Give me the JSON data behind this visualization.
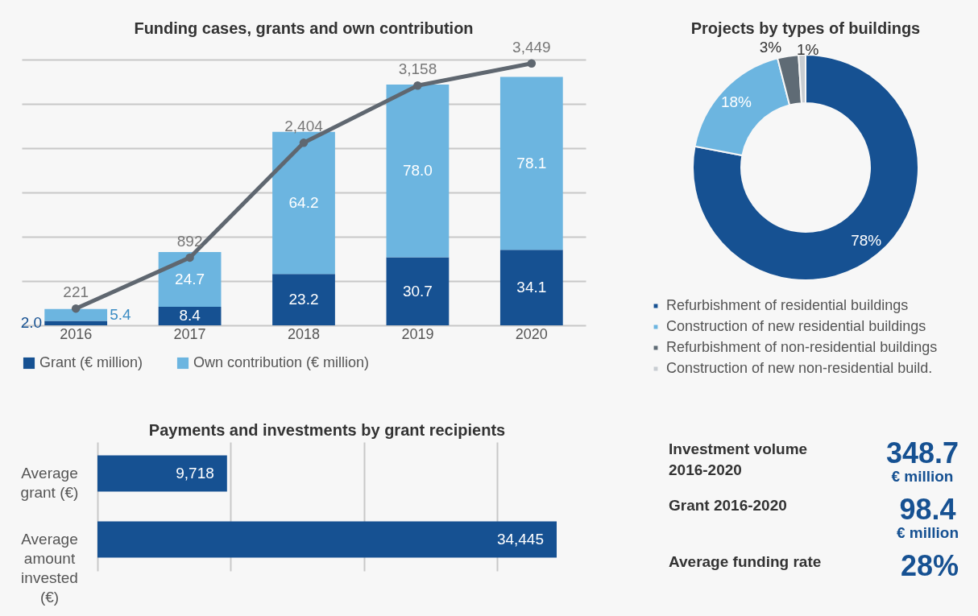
{
  "chart_data": [
    {
      "type": "bar",
      "title": "Funding cases, grants and own contribution",
      "categories": [
        "2016",
        "2017",
        "2018",
        "2019",
        "2020"
      ],
      "stacked": true,
      "ylim": [
        0,
        120
      ],
      "yticks": [
        0,
        20,
        40,
        60,
        80,
        100,
        120
      ],
      "y2lim": [
        0,
        3500
      ],
      "grid": "y",
      "tick_labels": "x",
      "legend": "bottom",
      "marker": "circle",
      "series": [
        {
          "name": "Grant (€ million)",
          "color": "#165192",
          "values": [
            2.0,
            8.4,
            23.2,
            30.7,
            34.1
          ],
          "value_labels": [
            "2.0",
            "8.4",
            "23.2",
            "30.7",
            "34.1"
          ]
        },
        {
          "name": "Own contribution (€ million)",
          "color": "#6cb5e0",
          "values": [
            5.4,
            24.7,
            64.2,
            78.0,
            78.1
          ],
          "value_labels": [
            "5.4",
            "24.7",
            "64.2",
            "78.0",
            "78.1"
          ]
        },
        {
          "type": "line",
          "axis": "y2",
          "color": "#5f6770",
          "values": [
            221,
            892,
            2404,
            3158,
            3449
          ],
          "value_labels": [
            "221",
            "892",
            "2,404",
            "3,158",
            "3,449"
          ]
        }
      ]
    },
    {
      "type": "donut",
      "title": "Projects by types of buildings",
      "categories": [
        "Refurbishment of residential buildings",
        "Construction of new residential buildings",
        "Refurbishment of non-residential buildings",
        "Construction of new non-residential build."
      ],
      "values": [
        78,
        18,
        3,
        1
      ],
      "colors": [
        "#165192",
        "#6cb5e0",
        "#5f6b75",
        "#c8cdd2"
      ],
      "value_labels": [
        "78%",
        "18%",
        "3%",
        "1%"
      ],
      "legend": "bottom"
    },
    {
      "type": "bar",
      "orientation": "horizontal",
      "title": "Payments and investments by grant recipients",
      "categories": [
        "Average grant (€)",
        "Average amount invested (€)"
      ],
      "values": [
        9718,
        34445
      ],
      "value_labels": [
        "9,718",
        "34,445"
      ],
      "color": "#165192",
      "xticks": [
        {
          "value": 0,
          "label": null
        },
        {
          "value": 10000,
          "label": null
        },
        {
          "value": 20000,
          "label": null
        },
        {
          "value": 30000,
          "label": null
        }
      ],
      "grid": "x",
      "tick_labels": "y"
    },
    {
      "type": "other",
      "annotations": [
        "Investment volume 2016-2020",
        "348.7",
        "€ million",
        "Grant 2016-2020",
        "98.4",
        "€ million",
        "Average funding rate",
        "28%"
      ]
    }
  ]
}
